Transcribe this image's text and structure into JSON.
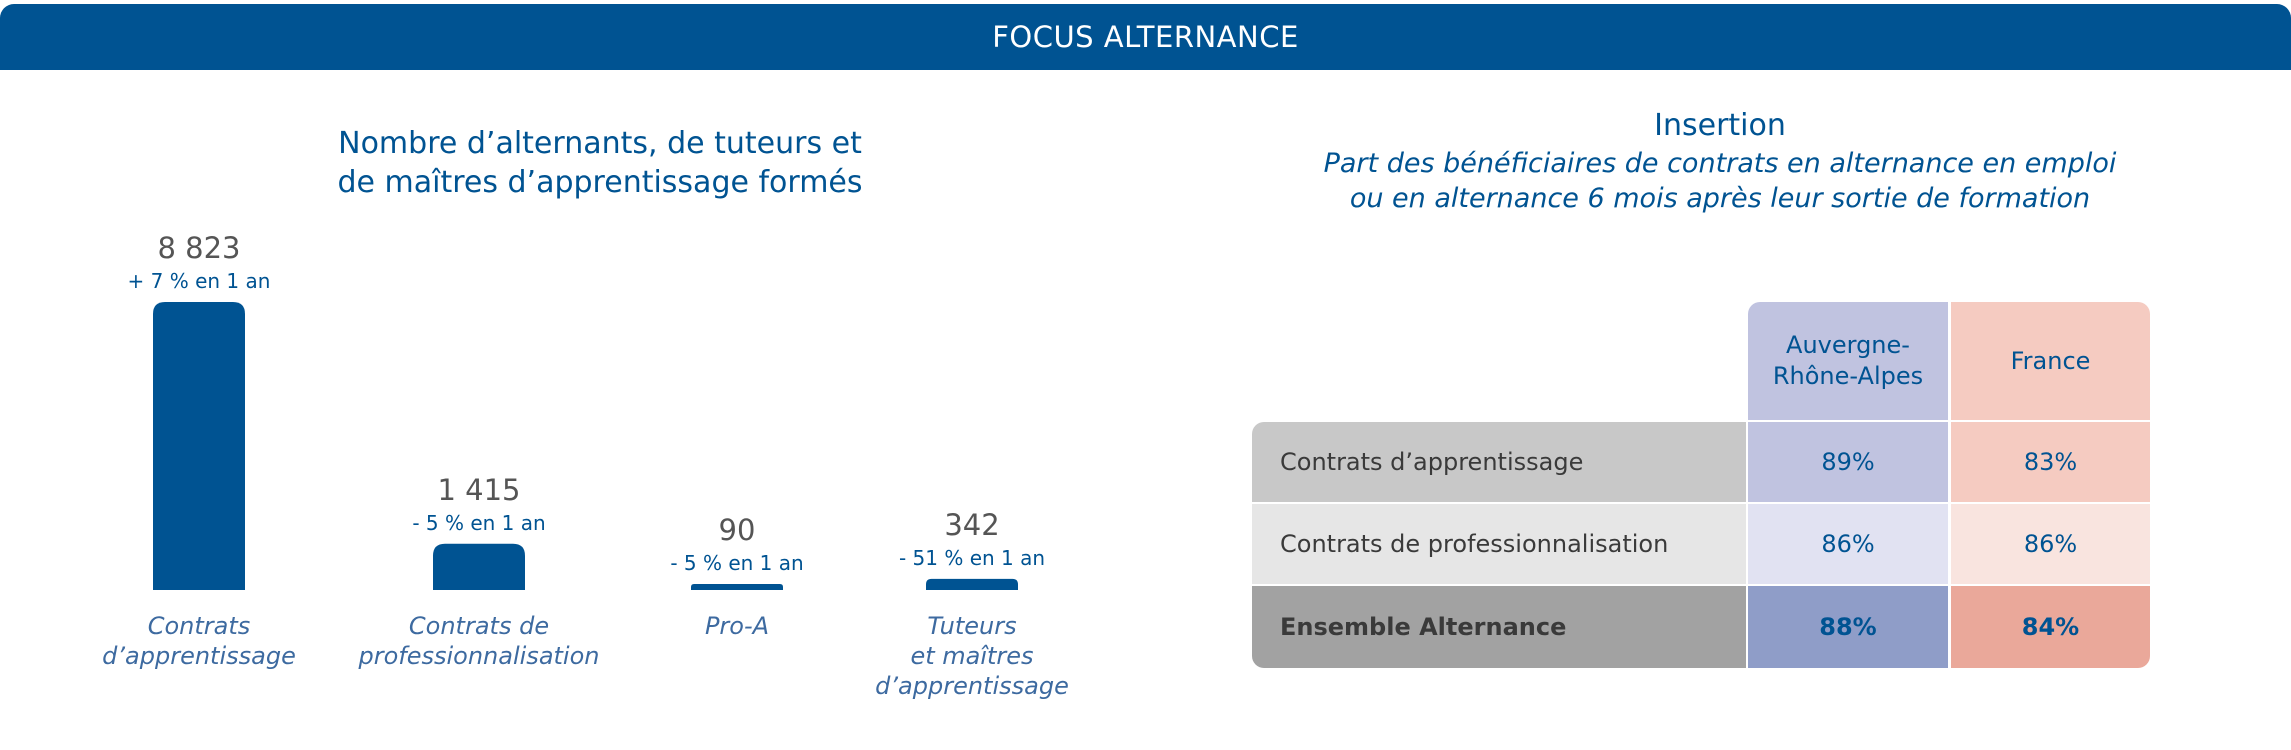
{
  "banner": {
    "title": "FOCUS ALTERNANCE"
  },
  "left_panel": {
    "title_line1": "Nombre d’alternants, de tuteurs et",
    "title_line2": "de maîtres d’apprentissage formés"
  },
  "chart_data": {
    "type": "bar",
    "title": "Nombre d’alternants, de tuteurs et de maîtres d’apprentissage formés",
    "categories": [
      [
        "Contrats",
        "d’apprentissage"
      ],
      [
        "Contrats de",
        "professionnalisation"
      ],
      [
        "Pro-A"
      ],
      [
        "Tuteurs",
        "et maîtres",
        "d’apprentissage"
      ]
    ],
    "values": [
      8823,
      1415,
      90,
      342
    ],
    "value_labels": [
      "8 823",
      "1 415",
      "90",
      "342"
    ],
    "change_labels": [
      "+ 7 % en 1 an",
      "- 5 % en 1 an",
      "- 5 % en 1 an",
      "- 51 % en 1 an"
    ],
    "ylim": [
      0,
      8823
    ],
    "grid": false,
    "colors": {
      "bar": "#005392",
      "value": "#555555",
      "change": "#005392",
      "category": "#3d6aa0"
    }
  },
  "right_panel": {
    "title": "Insertion",
    "subtitle_line1": "Part des bénéficiaires de contrats en alternance en emploi",
    "subtitle_line2": "ou en alternance 6 mois après leur sortie de formation"
  },
  "table": {
    "columns": [
      "Auvergne-Rhône-Alpes",
      "France"
    ],
    "column_lines": [
      [
        "Auvergne-",
        "Rhône-Alpes"
      ],
      [
        "France"
      ]
    ],
    "rows": [
      {
        "label": "Contrats d’apprentissage",
        "values": [
          "89%",
          "83%"
        ],
        "bold": false
      },
      {
        "label": "Contrats de professionnalisation",
        "values": [
          "86%",
          "86%"
        ],
        "bold": false
      },
      {
        "label": "Ensemble Alternance",
        "values": [
          "88%",
          "84%"
        ],
        "bold": true
      }
    ],
    "colors": {
      "header_ara": "#c0c3e0",
      "header_fr": "#f5cbc1",
      "label_rows": [
        "#c8c8c8",
        "#e6e6e6",
        "#a2a2a2"
      ],
      "ara_rows": [
        "#c0c3e0",
        "#e1e2f2",
        "#8f9dc8"
      ],
      "fr_rows": [
        "#f5cbc1",
        "#f9e4df",
        "#eaa89a"
      ]
    }
  }
}
